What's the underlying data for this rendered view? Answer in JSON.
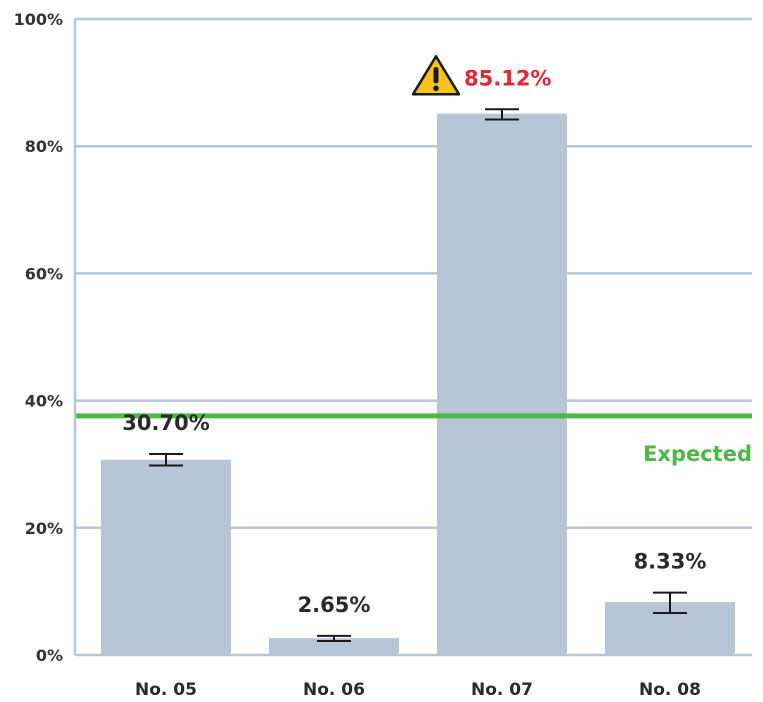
{
  "chart_data": {
    "type": "bar",
    "categories": [
      "No. 05",
      "No. 06",
      "No. 07",
      "No. 08"
    ],
    "values": [
      30.7,
      2.65,
      85.12,
      8.33
    ],
    "value_labels": [
      "30.70%",
      "2.65%",
      "85.12%",
      "8.33%"
    ],
    "error_bars": [
      [
        29.8,
        31.6
      ],
      [
        2.2,
        3.0
      ],
      [
        84.2,
        85.8
      ],
      [
        6.6,
        9.8
      ]
    ],
    "alert_index": 2,
    "alert_icon": "warning-icon",
    "ylim": [
      0,
      100
    ],
    "yticks": [
      0,
      20,
      40,
      60,
      80,
      100
    ],
    "ytick_labels": [
      "0%",
      "20%",
      "40%",
      "60%",
      "80%",
      "100%"
    ],
    "grid": true,
    "reference_line": {
      "value": 37.6,
      "label": "Expected",
      "color": "#4cb848"
    },
    "colors": {
      "bar": "#b6c6d6",
      "grid": "#b6c6d6",
      "alert_text": "#e0283a",
      "warning_fill": "#f7c31a"
    }
  }
}
